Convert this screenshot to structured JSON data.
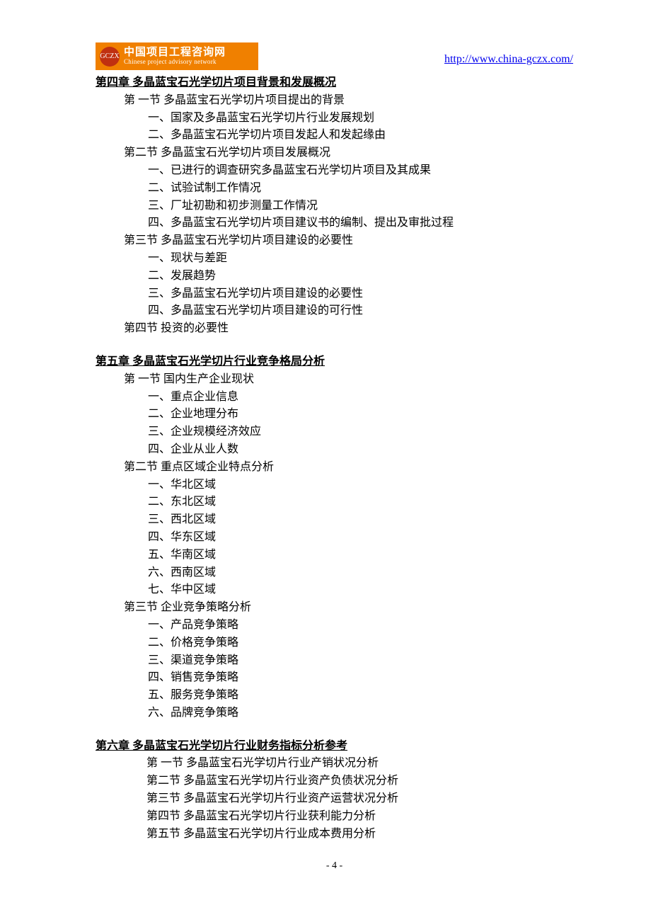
{
  "header": {
    "logo_cn": "中国项目工程咨询网",
    "logo_en": "Chinese project advisory network",
    "logo_badge": "GCZX",
    "url_text": "http://www.china-gczx.com/"
  },
  "chapter4": {
    "title": "第四章  多晶蓝宝石光学切片项目背景和发展概况",
    "sections": [
      "第 一节  多晶蓝宝石光学切片项目提出的背景",
      "第二节  多晶蓝宝石光学切片项目发展概况",
      "第三节  多晶蓝宝石光学切片项目建设的必要性",
      "第四节    投资的必要性"
    ],
    "subs1": [
      "一、国家及多晶蓝宝石光学切片行业发展规划",
      "二、多晶蓝宝石光学切片项目发起人和发起缘由"
    ],
    "subs2": [
      "一、已进行的调查研究多晶蓝宝石光学切片项目及其成果",
      "二、试验试制工作情况",
      "三、厂址初勘和初步测量工作情况",
      "四、多晶蓝宝石光学切片项目建议书的编制、提出及审批过程"
    ],
    "subs3": [
      "一、现状与差距",
      "二、发展趋势",
      "三、多晶蓝宝石光学切片项目建设的必要性",
      "四、多晶蓝宝石光学切片项目建设的可行性"
    ]
  },
  "chapter5": {
    "title": "第五章  多晶蓝宝石光学切片行业竞争格局分析",
    "sections": [
      "第 一节    国内生产企业现状",
      "第二节    重点区域企业特点分析",
      "第三节    企业竞争策略分析"
    ],
    "subs1": [
      "一、重点企业信息",
      "二、企业地理分布",
      "三、企业规模经济效应",
      "四、企业从业人数"
    ],
    "subs2": [
      "一、华北区域",
      "二、东北区域",
      "三、西北区域",
      "四、华东区域",
      "五、华南区域",
      "六、西南区域",
      "七、华中区域"
    ],
    "subs3": [
      "一、产品竞争策略",
      "二、价格竞争策略",
      "三、渠道竞争策略",
      "四、销售竞争策略",
      "五、服务竞争策略",
      "六、品牌竞争策略"
    ]
  },
  "chapter6": {
    "title": "第六章  多晶蓝宝石光学切片行业财务指标分析参考",
    "sections": [
      "第 一节  多晶蓝宝石光学切片行业产销状况分析",
      "第二节  多晶蓝宝石光学切片行业资产负债状况分析",
      "第三节  多晶蓝宝石光学切片行业资产运营状况分析",
      "第四节  多晶蓝宝石光学切片行业获利能力分析",
      "第五节  多晶蓝宝石光学切片行业成本费用分析"
    ]
  },
  "page_number": "- 4 -",
  "colors": {
    "link": "#0000ee",
    "logo_bg": "#f08000",
    "logo_circle": "#c03010",
    "text": "#000000",
    "bg": "#ffffff"
  }
}
